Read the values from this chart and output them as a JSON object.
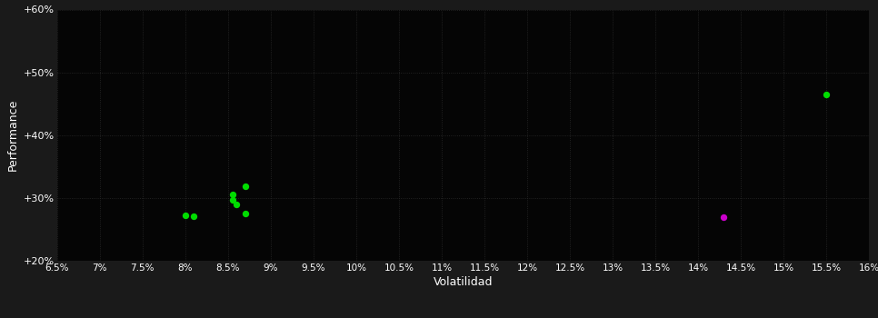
{
  "xlabel": "Volatilidad",
  "ylabel": "Performance",
  "bg_color": "#1a1a1a",
  "plot_bg_color": "#050505",
  "grid_color": "#2a2a2a",
  "text_color": "#ffffff",
  "xlim": [
    0.065,
    0.16
  ],
  "ylim": [
    0.2,
    0.6
  ],
  "xticks": [
    0.065,
    0.07,
    0.075,
    0.08,
    0.085,
    0.09,
    0.095,
    0.1,
    0.105,
    0.11,
    0.115,
    0.12,
    0.125,
    0.13,
    0.135,
    0.14,
    0.145,
    0.15,
    0.155,
    0.16
  ],
  "yticks": [
    0.2,
    0.3,
    0.4,
    0.5,
    0.6
  ],
  "green_points": [
    [
      0.08,
      0.273
    ],
    [
      0.081,
      0.271
    ],
    [
      0.087,
      0.275
    ],
    [
      0.086,
      0.289
    ],
    [
      0.0855,
      0.297
    ],
    [
      0.0855,
      0.305
    ],
    [
      0.087,
      0.318
    ],
    [
      0.155,
      0.465
    ]
  ],
  "magenta_points": [
    [
      0.143,
      0.27
    ]
  ],
  "point_size": 28,
  "green_color": "#00dd00",
  "magenta_color": "#cc00cc"
}
